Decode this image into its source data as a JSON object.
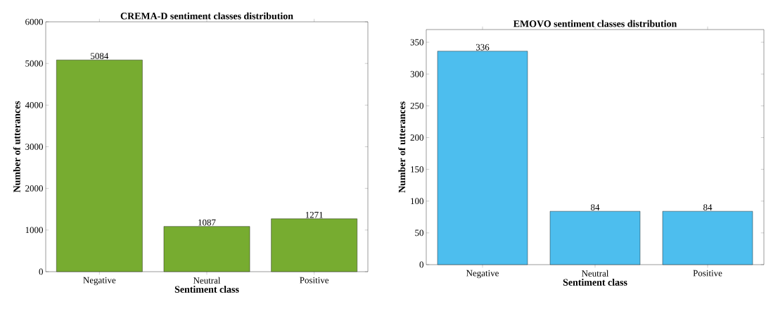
{
  "chart_data": [
    {
      "type": "bar",
      "title": "CREMA-D sentiment classes distribution",
      "xlabel": "Sentiment class",
      "ylabel": "Number of utterances",
      "categories": [
        "Negative",
        "Neutral",
        "Positive"
      ],
      "values": [
        5084,
        1087,
        1271
      ],
      "color": "#77ac30",
      "ylim": [
        0,
        6000
      ],
      "yticks": [
        0,
        1000,
        2000,
        3000,
        4000,
        5000,
        6000
      ],
      "data_labels": true
    },
    {
      "type": "bar",
      "title": "EMOVO sentiment classes distribution",
      "xlabel": "Sentiment class",
      "ylabel": "Number of utterances",
      "categories": [
        "Negative",
        "Neutral",
        "Positive"
      ],
      "values": [
        336,
        84,
        84
      ],
      "color": "#4dbeee",
      "ylim": [
        0,
        370
      ],
      "yticks": [
        0,
        50,
        100,
        150,
        200,
        250,
        300,
        350
      ],
      "data_labels": true
    }
  ]
}
